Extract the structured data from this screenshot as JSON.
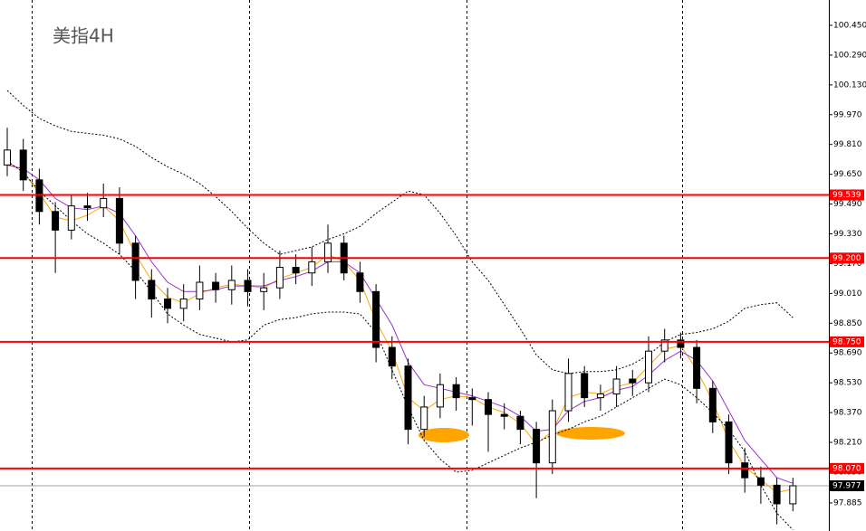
{
  "chart_data": {
    "type": "candlestick",
    "title": "美指4H",
    "ylim": [
      97.734,
      100.586
    ],
    "yticks": [
      {
        "value": 100.45,
        "label": "100.450"
      },
      {
        "value": 100.29,
        "label": "100.290"
      },
      {
        "value": 100.13,
        "label": "100.130"
      },
      {
        "value": 99.97,
        "label": "99.970"
      },
      {
        "value": 99.81,
        "label": "99.810"
      },
      {
        "value": 99.65,
        "label": "99.650"
      },
      {
        "value": 99.49,
        "label": "99.490"
      },
      {
        "value": 99.33,
        "label": "99.330"
      },
      {
        "value": 99.17,
        "label": "99.170"
      },
      {
        "value": 99.01,
        "label": "99.010"
      },
      {
        "value": 98.85,
        "label": "98.850"
      },
      {
        "value": 98.69,
        "label": "98.690"
      },
      {
        "value": 98.53,
        "label": "98.530"
      },
      {
        "value": 98.37,
        "label": "98.370"
      },
      {
        "value": 98.21,
        "label": "98.210"
      },
      {
        "value": 98.05,
        "label": "98.050"
      },
      {
        "value": 97.885,
        "label": "97.885"
      }
    ],
    "levels": [
      {
        "value": 99.539,
        "label": "99.539",
        "color": "#ff0000"
      },
      {
        "value": 99.2,
        "label": "99.200",
        "color": "#ff0000"
      },
      {
        "value": 98.75,
        "label": "98.750",
        "color": "#ff0000"
      },
      {
        "value": 98.07,
        "label": "98.070",
        "color": "#ff0000"
      }
    ],
    "current_price": {
      "value": 97.977,
      "label": "97.977",
      "color": "#000000"
    },
    "open": [
      99.7,
      99.78,
      99.62,
      99.45,
      99.35,
      99.48,
      99.47,
      99.52,
      99.28,
      99.08,
      98.98,
      98.93,
      98.98,
      99.07,
      99.03,
      99.08,
      99.02,
      99.04,
      99.15,
      99.12,
      99.18,
      99.28,
      99.12,
      99.02,
      98.72,
      98.62,
      98.28,
      98.4,
      98.52,
      98.45,
      98.44,
      98.36,
      98.35,
      98.28,
      98.1,
      98.38,
      98.58,
      98.45,
      98.47,
      98.55,
      98.53,
      98.7,
      98.76,
      98.72,
      98.5,
      98.32,
      98.1,
      98.02,
      97.98,
      97.88
    ],
    "high": [
      99.9,
      99.84,
      99.68,
      99.5,
      99.54,
      99.55,
      99.6,
      99.58,
      99.32,
      99.14,
      99.04,
      99.06,
      99.16,
      99.12,
      99.16,
      99.14,
      99.12,
      99.24,
      99.22,
      99.26,
      99.38,
      99.32,
      99.18,
      99.06,
      98.78,
      98.66,
      98.46,
      98.58,
      98.56,
      98.5,
      98.48,
      98.42,
      98.38,
      98.32,
      98.44,
      98.66,
      98.62,
      98.52,
      98.62,
      98.6,
      98.78,
      98.82,
      98.8,
      98.76,
      98.54,
      98.36,
      98.18,
      98.08,
      98.02,
      98.02
    ],
    "low": [
      99.64,
      99.56,
      99.38,
      99.12,
      99.3,
      99.4,
      99.42,
      99.22,
      98.98,
      98.88,
      98.85,
      98.86,
      98.92,
      98.96,
      98.95,
      98.94,
      98.92,
      98.98,
      99.06,
      99.05,
      99.12,
      99.08,
      98.96,
      98.64,
      98.55,
      98.2,
      98.24,
      98.34,
      98.38,
      98.3,
      98.16,
      98.28,
      98.2,
      97.91,
      98.04,
      98.32,
      98.4,
      98.38,
      98.4,
      98.46,
      98.48,
      98.64,
      98.66,
      98.42,
      98.26,
      98.04,
      97.94,
      97.88,
      97.77,
      97.84
    ],
    "close": [
      99.78,
      99.62,
      99.45,
      99.35,
      99.48,
      99.47,
      99.52,
      99.28,
      99.08,
      98.98,
      98.93,
      98.98,
      99.07,
      99.03,
      99.08,
      99.02,
      99.04,
      99.15,
      99.12,
      99.18,
      99.28,
      99.12,
      99.02,
      98.72,
      98.62,
      98.28,
      98.4,
      98.52,
      98.45,
      98.44,
      98.36,
      98.35,
      98.28,
      98.1,
      98.38,
      98.58,
      98.45,
      98.47,
      98.55,
      98.53,
      98.7,
      98.76,
      98.72,
      98.5,
      98.32,
      98.1,
      98.02,
      97.98,
      97.88,
      97.977
    ],
    "lines": [
      {
        "color": "#ffa500",
        "dash": false,
        "values": [
          99.72,
          99.66,
          99.55,
          99.42,
          99.4,
          99.43,
          99.48,
          99.4,
          99.22,
          99.08,
          98.99,
          98.96,
          99.01,
          99.04,
          99.06,
          99.05,
          99.04,
          99.09,
          99.12,
          99.15,
          99.22,
          99.18,
          99.08,
          98.86,
          98.7,
          98.45,
          98.38,
          98.44,
          98.46,
          98.45,
          98.4,
          98.37,
          98.31,
          98.2,
          98.27,
          98.45,
          98.48,
          98.47,
          98.51,
          98.53,
          98.62,
          98.71,
          98.73,
          98.6,
          98.43,
          98.22,
          98.08,
          98.01,
          97.94,
          97.96
        ]
      },
      {
        "color": "#9932cc",
        "dash": false,
        "values": [
          99.7,
          99.68,
          99.62,
          99.52,
          99.47,
          99.46,
          99.48,
          99.44,
          99.32,
          99.18,
          99.07,
          99.02,
          99.02,
          99.03,
          99.05,
          99.05,
          99.05,
          99.08,
          99.1,
          99.13,
          99.18,
          99.18,
          99.12,
          98.98,
          98.84,
          98.64,
          98.52,
          98.5,
          98.48,
          98.46,
          98.43,
          98.4,
          98.35,
          98.27,
          98.28,
          98.38,
          98.43,
          98.45,
          98.49,
          98.51,
          98.57,
          98.65,
          98.7,
          98.65,
          98.54,
          98.38,
          98.22,
          98.12,
          98.02,
          97.99
        ]
      },
      {
        "color": "#000000",
        "dash": true,
        "values": [
          100.1,
          100.02,
          99.95,
          99.91,
          99.88,
          99.87,
          99.86,
          99.84,
          99.8,
          99.74,
          99.69,
          99.65,
          99.6,
          99.53,
          99.45,
          99.36,
          99.28,
          99.22,
          99.24,
          99.26,
          99.3,
          99.33,
          99.37,
          99.44,
          99.5,
          99.56,
          99.54,
          99.44,
          99.32,
          99.18,
          99.08,
          98.95,
          98.82,
          98.68,
          98.6,
          98.58,
          98.59,
          98.59,
          98.6,
          98.63,
          98.68,
          98.75,
          98.79,
          98.8,
          98.82,
          98.86,
          98.93,
          98.95,
          98.96,
          98.88
        ]
      },
      {
        "color": "#000000",
        "dash": true,
        "values": [
          99.72,
          99.66,
          99.56,
          99.48,
          99.4,
          99.33,
          99.28,
          99.22,
          99.13,
          99.02,
          98.9,
          98.84,
          98.79,
          98.77,
          98.75,
          98.76,
          98.84,
          98.87,
          98.88,
          98.9,
          98.91,
          98.91,
          98.9,
          98.8,
          98.6,
          98.4,
          98.22,
          98.12,
          98.05,
          98.06,
          98.1,
          98.14,
          98.18,
          98.21,
          98.25,
          98.28,
          98.32,
          98.35,
          98.4,
          98.45,
          98.5,
          98.55,
          98.52,
          98.45,
          98.37,
          98.28,
          98.16,
          97.98,
          97.83,
          97.74
        ]
      }
    ]
  }
}
